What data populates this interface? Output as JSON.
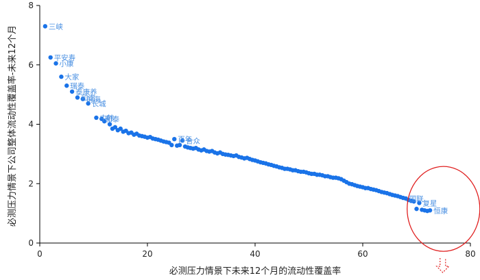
{
  "chart_data": {
    "type": "scatter",
    "xlabel": "必测压力情景下未来12个月的流动性覆盖率",
    "ylabel": "必测压力情景下公司整体流动性覆盖率-未来12个月",
    "xlim": [
      0,
      80
    ],
    "ylim": [
      0,
      8
    ],
    "x_ticks": [
      0,
      20,
      40,
      60,
      80
    ],
    "y_ticks": [
      0,
      2,
      4,
      6,
      8
    ],
    "grid": false,
    "marker_color": "#1a73e8",
    "label_color": "#4a90e2",
    "highlight_color": "#e02020",
    "labeled_points": [
      {
        "x": 1.0,
        "y": 7.3,
        "label": "三峡"
      },
      {
        "x": 2.0,
        "y": 6.25,
        "label": "平安寿"
      },
      {
        "x": 3.0,
        "y": 6.05,
        "label": "小康"
      },
      {
        "x": 4.0,
        "y": 5.6,
        "label": "大家"
      },
      {
        "x": 5.0,
        "y": 5.3,
        "label": "瑞泰"
      },
      {
        "x": 6.0,
        "y": 5.1,
        "label": "泰康养"
      },
      {
        "x": 7.0,
        "y": 4.9,
        "label": "和谐"
      },
      {
        "x": 8.0,
        "y": 4.85,
        "label": "前海"
      },
      {
        "x": 9.0,
        "y": 4.7,
        "label": "长城"
      },
      {
        "x": 10.5,
        "y": 4.22,
        "label": "中韩"
      },
      {
        "x": 11.5,
        "y": 4.18,
        "label": "和泰"
      },
      {
        "x": 25.0,
        "y": 3.5,
        "label": "百年"
      },
      {
        "x": 26.5,
        "y": 3.45,
        "label": "合众"
      },
      {
        "x": 68.0,
        "y": 1.5,
        "label": "国联"
      },
      {
        "x": 70.5,
        "y": 1.35,
        "label": "复星"
      },
      {
        "x": 72.5,
        "y": 1.1,
        "label": "恒康"
      }
    ],
    "points": [
      {
        "x": 12.0,
        "y": 4.1
      },
      {
        "x": 13.0,
        "y": 4.0
      },
      {
        "x": 13.5,
        "y": 3.85
      },
      {
        "x": 14.0,
        "y": 3.9
      },
      {
        "x": 14.5,
        "y": 3.8
      },
      {
        "x": 15.0,
        "y": 3.85
      },
      {
        "x": 15.5,
        "y": 3.75
      },
      {
        "x": 16.0,
        "y": 3.78
      },
      {
        "x": 16.5,
        "y": 3.7
      },
      {
        "x": 17.0,
        "y": 3.72
      },
      {
        "x": 17.5,
        "y": 3.65
      },
      {
        "x": 18.0,
        "y": 3.68
      },
      {
        "x": 18.5,
        "y": 3.62
      },
      {
        "x": 19.0,
        "y": 3.6
      },
      {
        "x": 19.5,
        "y": 3.58
      },
      {
        "x": 20.0,
        "y": 3.55
      },
      {
        "x": 20.5,
        "y": 3.57
      },
      {
        "x": 21.0,
        "y": 3.52
      },
      {
        "x": 21.5,
        "y": 3.5
      },
      {
        "x": 22.0,
        "y": 3.48
      },
      {
        "x": 22.5,
        "y": 3.45
      },
      {
        "x": 23.0,
        "y": 3.42
      },
      {
        "x": 23.5,
        "y": 3.4
      },
      {
        "x": 24.0,
        "y": 3.38
      },
      {
        "x": 24.5,
        "y": 3.3
      },
      {
        "x": 25.5,
        "y": 3.28
      },
      {
        "x": 26.0,
        "y": 3.3
      },
      {
        "x": 27.0,
        "y": 3.25
      },
      {
        "x": 27.5,
        "y": 3.22
      },
      {
        "x": 28.0,
        "y": 3.2
      },
      {
        "x": 28.5,
        "y": 3.18
      },
      {
        "x": 29.0,
        "y": 3.2
      },
      {
        "x": 29.5,
        "y": 3.15
      },
      {
        "x": 30.0,
        "y": 3.12
      },
      {
        "x": 30.5,
        "y": 3.15
      },
      {
        "x": 31.0,
        "y": 3.1
      },
      {
        "x": 31.5,
        "y": 3.08
      },
      {
        "x": 32.0,
        "y": 3.1
      },
      {
        "x": 32.5,
        "y": 3.05
      },
      {
        "x": 33.0,
        "y": 3.02
      },
      {
        "x": 33.5,
        "y": 3.05
      },
      {
        "x": 34.0,
        "y": 3.0
      },
      {
        "x": 34.5,
        "y": 2.98
      },
      {
        "x": 35.0,
        "y": 2.97
      },
      {
        "x": 35.5,
        "y": 2.95
      },
      {
        "x": 36.0,
        "y": 2.93
      },
      {
        "x": 36.5,
        "y": 2.95
      },
      {
        "x": 37.0,
        "y": 2.9
      },
      {
        "x": 37.5,
        "y": 2.88
      },
      {
        "x": 38.0,
        "y": 2.85
      },
      {
        "x": 38.5,
        "y": 2.87
      },
      {
        "x": 39.0,
        "y": 2.83
      },
      {
        "x": 39.5,
        "y": 2.8
      },
      {
        "x": 40.0,
        "y": 2.78
      },
      {
        "x": 40.5,
        "y": 2.75
      },
      {
        "x": 41.0,
        "y": 2.72
      },
      {
        "x": 41.5,
        "y": 2.7
      },
      {
        "x": 42.0,
        "y": 2.68
      },
      {
        "x": 42.5,
        "y": 2.65
      },
      {
        "x": 43.0,
        "y": 2.63
      },
      {
        "x": 43.5,
        "y": 2.6
      },
      {
        "x": 44.0,
        "y": 2.58
      },
      {
        "x": 44.5,
        "y": 2.55
      },
      {
        "x": 45.0,
        "y": 2.53
      },
      {
        "x": 45.5,
        "y": 2.5
      },
      {
        "x": 46.0,
        "y": 2.5
      },
      {
        "x": 46.5,
        "y": 2.48
      },
      {
        "x": 47.0,
        "y": 2.45
      },
      {
        "x": 47.5,
        "y": 2.45
      },
      {
        "x": 48.0,
        "y": 2.42
      },
      {
        "x": 48.5,
        "y": 2.4
      },
      {
        "x": 49.0,
        "y": 2.4
      },
      {
        "x": 49.5,
        "y": 2.38
      },
      {
        "x": 50.0,
        "y": 2.35
      },
      {
        "x": 50.5,
        "y": 2.33
      },
      {
        "x": 51.0,
        "y": 2.33
      },
      {
        "x": 51.5,
        "y": 2.3
      },
      {
        "x": 52.0,
        "y": 2.3
      },
      {
        "x": 52.5,
        "y": 2.28
      },
      {
        "x": 53.0,
        "y": 2.25
      },
      {
        "x": 53.5,
        "y": 2.25
      },
      {
        "x": 54.0,
        "y": 2.22
      },
      {
        "x": 54.5,
        "y": 2.2
      },
      {
        "x": 55.0,
        "y": 2.2
      },
      {
        "x": 55.5,
        "y": 2.18
      },
      {
        "x": 56.0,
        "y": 2.15
      },
      {
        "x": 56.5,
        "y": 2.1
      },
      {
        "x": 57.0,
        "y": 2.05
      },
      {
        "x": 57.5,
        "y": 2.0
      },
      {
        "x": 58.0,
        "y": 1.98
      },
      {
        "x": 58.5,
        "y": 1.95
      },
      {
        "x": 59.0,
        "y": 1.92
      },
      {
        "x": 59.5,
        "y": 1.9
      },
      {
        "x": 60.0,
        "y": 1.88
      },
      {
        "x": 60.5,
        "y": 1.85
      },
      {
        "x": 61.0,
        "y": 1.85
      },
      {
        "x": 61.5,
        "y": 1.82
      },
      {
        "x": 62.0,
        "y": 1.8
      },
      {
        "x": 62.5,
        "y": 1.78
      },
      {
        "x": 63.0,
        "y": 1.75
      },
      {
        "x": 63.5,
        "y": 1.72
      },
      {
        "x": 64.0,
        "y": 1.7
      },
      {
        "x": 64.5,
        "y": 1.68
      },
      {
        "x": 65.0,
        "y": 1.65
      },
      {
        "x": 65.5,
        "y": 1.62
      },
      {
        "x": 66.0,
        "y": 1.6
      },
      {
        "x": 66.5,
        "y": 1.58
      },
      {
        "x": 67.0,
        "y": 1.55
      },
      {
        "x": 67.5,
        "y": 1.52
      },
      {
        "x": 68.5,
        "y": 1.45
      },
      {
        "x": 69.0,
        "y": 1.42
      },
      {
        "x": 69.5,
        "y": 1.4
      },
      {
        "x": 70.0,
        "y": 1.15
      },
      {
        "x": 71.0,
        "y": 1.12
      },
      {
        "x": 71.5,
        "y": 1.1
      },
      {
        "x": 72.0,
        "y": 1.08
      }
    ],
    "highlight": {
      "shape": "ellipse",
      "cx": 75,
      "cy": 1.15
    },
    "annotation_arrow": {
      "direction": "down",
      "style": "dashed"
    }
  }
}
